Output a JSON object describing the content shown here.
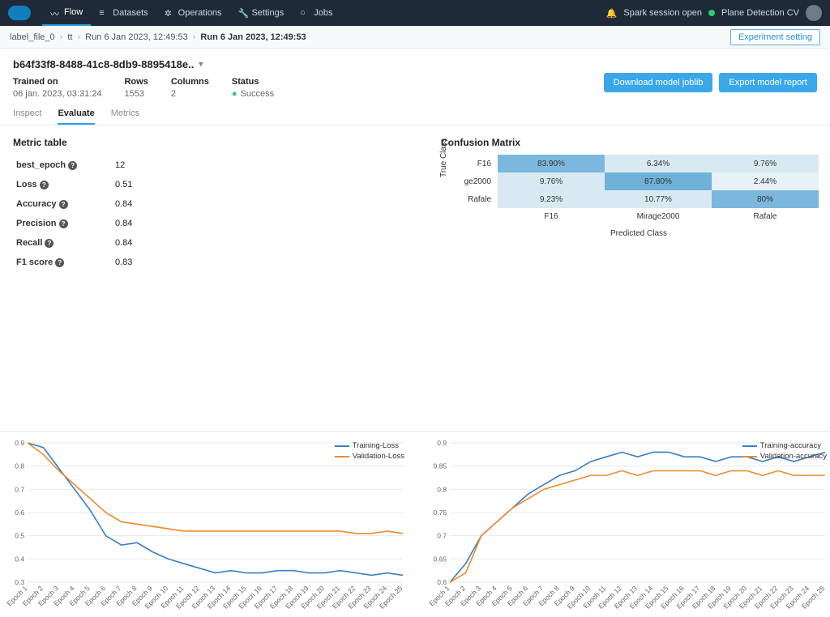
{
  "nav": {
    "items": [
      {
        "icon": "flow",
        "label": "Flow",
        "active": true
      },
      {
        "icon": "datasets",
        "label": "Datasets"
      },
      {
        "icon": "ops",
        "label": "Operations"
      },
      {
        "icon": "settings",
        "label": "Settings"
      },
      {
        "icon": "jobs",
        "label": "Jobs"
      }
    ],
    "session": "Spark session open",
    "project": "Plane Detection CV"
  },
  "breadcrumbs": [
    {
      "label": "label_file_0"
    },
    {
      "label": "tt"
    },
    {
      "label": "Run 6 Jan 2023, 12:49:53"
    },
    {
      "label": "Run 6 Jan 2023, 12:49:53",
      "current": true
    }
  ],
  "experiment_btn": "Experiment setting",
  "run": {
    "title": "b64f33f8-8488-41c8-8db9-8895418e..",
    "trained_on": {
      "lbl": "Trained on",
      "val": "06 jan. 2023, 03:31:24"
    },
    "rows": {
      "lbl": "Rows",
      "val": "1553"
    },
    "cols": {
      "lbl": "Columns",
      "val": "2"
    },
    "status": {
      "lbl": "Status",
      "val": "Success"
    }
  },
  "buttons": {
    "download": "Download model joblib",
    "export": "Export model report"
  },
  "subtabs": [
    {
      "label": "Inspect"
    },
    {
      "label": "Evaluate",
      "active": true
    },
    {
      "label": "Metrics"
    }
  ],
  "metric_table": {
    "title": "Metric table",
    "rows": [
      {
        "k": "best_epoch",
        "v": "12"
      },
      {
        "k": "Loss",
        "v": "0.51"
      },
      {
        "k": "Accuracy",
        "v": "0.84"
      },
      {
        "k": "Precision",
        "v": "0.84"
      },
      {
        "k": "Recall",
        "v": "0.84"
      },
      {
        "k": "F1 score",
        "v": "0.83"
      }
    ]
  },
  "confusion": {
    "title": "Confusion Matrix",
    "ylabel": "True Class",
    "xlabel": "Predicted Class",
    "classes": [
      "F16",
      "Mirage2000",
      "Rafale"
    ],
    "row_labels": [
      "F16",
      "ge2000",
      "Rafale"
    ],
    "cells": [
      [
        "83.90%",
        "6.34%",
        "9.76%"
      ],
      [
        "9.76%",
        "87.80%",
        "2.44%"
      ],
      [
        "9.23%",
        "10.77%",
        "80%"
      ]
    ],
    "colors": [
      [
        "#7cb8dd",
        "#d9e9f2",
        "#d9e9f2"
      ],
      [
        "#d9e9f2",
        "#6fb1d9",
        "#e7f1f7"
      ],
      [
        "#d9e9f2",
        "#d9e9f2",
        "#7cb8dd"
      ]
    ]
  },
  "charts": {
    "x_labels": [
      "Epoch 1",
      "Epoch 2",
      "Epoch 3",
      "Epoch 4",
      "Epoch 5",
      "Epoch 6",
      "Epoch 7",
      "Epoch 8",
      "Epoch 9",
      "Epoch 10",
      "Epoch 11",
      "Epoch 12",
      "Epoch 13",
      "Epoch 14",
      "Epoch 15",
      "Epoch 16",
      "Epoch 17",
      "Epoch 18",
      "Epoch 19",
      "Epoch 20",
      "Epoch 21",
      "Epoch 22",
      "Epoch 23",
      "Epoch 24",
      "Epoch 25"
    ],
    "loss": {
      "ylim": [
        0.3,
        0.9
      ],
      "ytick_step": 0.1,
      "legend": [
        "Training-Loss",
        "Validation-Loss"
      ],
      "colors": [
        "#3a7fc4",
        "#f08a2c"
      ],
      "series": [
        [
          0.94,
          0.88,
          0.79,
          0.7,
          0.61,
          0.5,
          0.46,
          0.47,
          0.43,
          0.4,
          0.38,
          0.36,
          0.34,
          0.35,
          0.34,
          0.34,
          0.35,
          0.35,
          0.34,
          0.34,
          0.35,
          0.34,
          0.33,
          0.34,
          0.33
        ],
        [
          0.91,
          0.85,
          0.78,
          0.72,
          0.66,
          0.6,
          0.56,
          0.55,
          0.54,
          0.53,
          0.52,
          0.52,
          0.52,
          0.52,
          0.52,
          0.52,
          0.52,
          0.52,
          0.52,
          0.52,
          0.52,
          0.51,
          0.51,
          0.52,
          0.51
        ]
      ]
    },
    "acc": {
      "ylim": [
        0.6,
        0.9
      ],
      "ytick_step": 0.05,
      "legend": [
        "Training-accuracy",
        "Validation-accuracy"
      ],
      "colors": [
        "#3a7fc4",
        "#f08a2c"
      ],
      "series": [
        [
          0.59,
          0.64,
          0.7,
          0.73,
          0.76,
          0.79,
          0.81,
          0.83,
          0.84,
          0.86,
          0.87,
          0.88,
          0.87,
          0.88,
          0.88,
          0.87,
          0.87,
          0.86,
          0.87,
          0.87,
          0.86,
          0.87,
          0.86,
          0.87,
          0.88
        ],
        [
          0.6,
          0.62,
          0.7,
          0.73,
          0.76,
          0.78,
          0.8,
          0.81,
          0.82,
          0.83,
          0.83,
          0.84,
          0.83,
          0.84,
          0.84,
          0.84,
          0.84,
          0.83,
          0.84,
          0.84,
          0.83,
          0.84,
          0.83,
          0.83,
          0.83
        ]
      ]
    }
  }
}
